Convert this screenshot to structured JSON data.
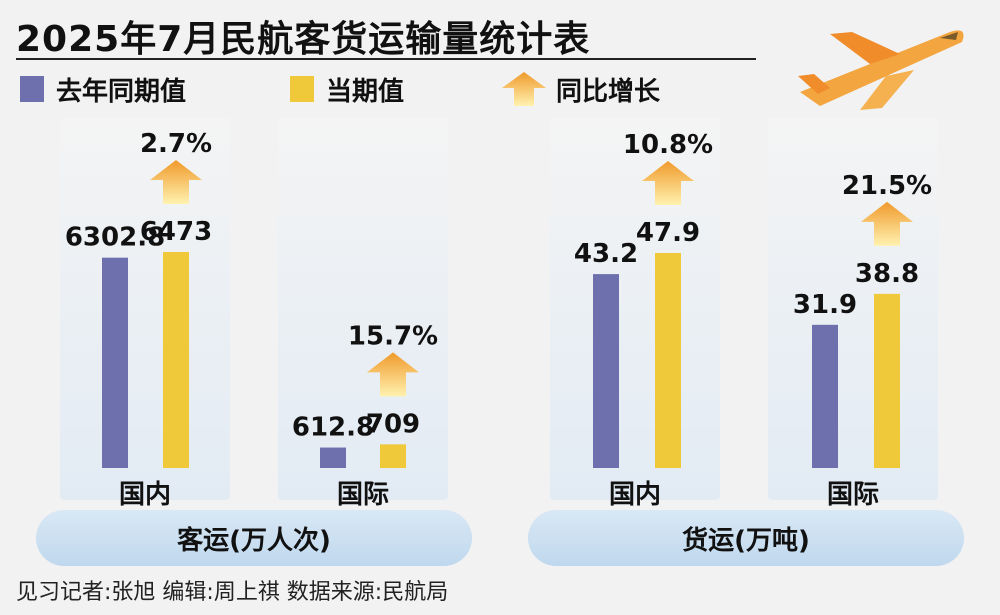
{
  "title": "2025年7月民航客货运输量统计表",
  "legend": {
    "last_year": "去年同期值",
    "current": "当期值",
    "growth": "同比增长"
  },
  "colors": {
    "last_year": "#6e70ad",
    "current": "#f0c93a",
    "arrow_top": "#f09a2c",
    "arrow_bottom": "#fff2b0"
  },
  "groups": [
    {
      "label": "客运(万人次)"
    },
    {
      "label": "货运(万吨)"
    }
  ],
  "chart_data": [
    {
      "type": "bar",
      "group": "客运(万人次)",
      "categories": [
        "国内",
        "国际"
      ],
      "series": [
        {
          "name": "去年同期值",
          "values": [
            6302.8,
            612.8
          ],
          "labels": [
            "6302.8",
            "612.8"
          ]
        },
        {
          "name": "当期值",
          "values": [
            6473,
            709
          ],
          "labels": [
            "6473",
            "709"
          ]
        }
      ],
      "growth": [
        "2.7%",
        "15.7%"
      ]
    },
    {
      "type": "bar",
      "group": "货运(万吨)",
      "categories": [
        "国内",
        "国际"
      ],
      "series": [
        {
          "name": "去年同期值",
          "values": [
            43.2,
            31.9
          ],
          "labels": [
            "43.2",
            "31.9"
          ]
        },
        {
          "name": "当期值",
          "values": [
            47.9,
            38.8
          ],
          "labels": [
            "47.9",
            "38.8"
          ]
        }
      ],
      "growth": [
        "10.8%",
        "21.5%"
      ]
    }
  ],
  "credit": "见习记者:张旭  编辑:周上祺  数据来源:民航局"
}
